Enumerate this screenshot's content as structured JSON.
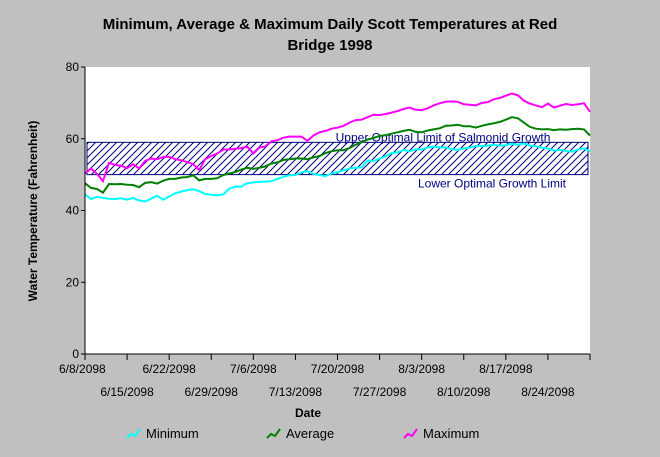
{
  "chart_data": {
    "type": "line",
    "title_lines": [
      "Minimum, Average & Maximum Daily Scott Temperatures at Red",
      "Bridge 1998"
    ],
    "xlabel": "Date",
    "ylabel": "Water Temperature (Fahrenheit)",
    "ylim": [
      0,
      80
    ],
    "yticks": [
      0,
      20,
      40,
      60,
      80
    ],
    "x_start": "6/8/2098",
    "x_end": "8/31/2098",
    "x_ticks_row1": [
      "6/8/2098",
      "6/22/2098",
      "7/6/2098",
      "7/20/2098",
      "8/3/2098",
      "8/17/2098"
    ],
    "x_ticks_row2": [
      "6/15/2098",
      "6/29/2098",
      "7/13/2098",
      "7/27/2098",
      "8/10/2098",
      "8/24/2098"
    ],
    "grid": false,
    "band": {
      "upper": 59,
      "lower": 50,
      "upper_label": "Upper Optimal Limit of Salmonid Growth",
      "lower_label": "Lower Optimal Growth Limit",
      "color": "#000080"
    },
    "legend_position": "bottom",
    "series": [
      {
        "name": "Minimum",
        "color": "#00ffff",
        "values": [
          44.5,
          43.2,
          43.8,
          43.5,
          43.3,
          43.2,
          43.4,
          43.0,
          43.5,
          42.8,
          42.5,
          43.3,
          44.1,
          43.0,
          43.9,
          44.8,
          45.3,
          45.7,
          45.9,
          45.4,
          44.6,
          44.4,
          44.2,
          44.5,
          46.1,
          46.6,
          46.7,
          47.6,
          47.8,
          48.0,
          48.0,
          48.2,
          48.8,
          49.4,
          49.8,
          49.9,
          50.6,
          51.0,
          50.2,
          49.9,
          49.6,
          50.3,
          50.7,
          51.2,
          51.7,
          51.9,
          52.0,
          53.9,
          53.8,
          54.5,
          55.1,
          56.0,
          56.2,
          56.9,
          56.5,
          57.1,
          57.0,
          57.6,
          57.8,
          57.6,
          57.6,
          57.1,
          56.9,
          57.3,
          57.5,
          58.0,
          57.9,
          58.1,
          58.3,
          58.1,
          58.2,
          58.6,
          58.3,
          58.7,
          58.1,
          57.9,
          57.5,
          57.3,
          56.7,
          56.9,
          56.6,
          56.4,
          57.0,
          57.3,
          56.5
        ]
      },
      {
        "name": "Average",
        "color": "#008000",
        "values": [
          47.6,
          46.3,
          46.0,
          45.0,
          47.4,
          47.3,
          47.4,
          47.2,
          47.1,
          46.5,
          47.7,
          47.9,
          47.5,
          48.3,
          48.8,
          48.8,
          49.2,
          49.3,
          49.8,
          48.4,
          48.8,
          48.8,
          49.0,
          49.9,
          50.3,
          50.7,
          51.4,
          51.9,
          51.6,
          51.9,
          52.3,
          53.1,
          53.4,
          54.1,
          54.3,
          54.5,
          54.5,
          54.3,
          54.8,
          55.2,
          56.0,
          56.5,
          56.8,
          56.8,
          57.4,
          58.3,
          59.0,
          59.8,
          60.2,
          60.8,
          61.0,
          61.4,
          61.8,
          62.2,
          62.5,
          61.9,
          61.8,
          62.3,
          62.6,
          62.9,
          63.6,
          63.7,
          63.9,
          63.5,
          63.5,
          63.1,
          63.6,
          64.0,
          64.3,
          64.7,
          65.3,
          66.0,
          65.7,
          64.5,
          63.3,
          62.8,
          62.6,
          62.7,
          62.4,
          62.6,
          62.5,
          62.7,
          62.8,
          62.6,
          60.9
        ]
      },
      {
        "name": "Maximum",
        "color": "#ff00ff",
        "values": [
          50.3,
          51.7,
          50.2,
          48.2,
          53.3,
          52.7,
          52.5,
          51.8,
          52.9,
          51.7,
          53.8,
          54.5,
          54.3,
          54.9,
          55.0,
          54.3,
          54.0,
          53.5,
          52.9,
          51.3,
          54.3,
          55.2,
          55.9,
          57.0,
          57.0,
          57.2,
          57.4,
          57.8,
          55.9,
          57.5,
          57.9,
          59.3,
          59.6,
          60.3,
          60.6,
          60.6,
          60.6,
          59.4,
          60.9,
          61.8,
          62.2,
          62.8,
          63.1,
          63.6,
          64.5,
          65.2,
          65.3,
          66.0,
          66.7,
          66.6,
          66.9,
          67.3,
          67.7,
          68.3,
          68.7,
          68.1,
          68.0,
          68.5,
          69.3,
          69.9,
          70.3,
          70.4,
          70.3,
          69.6,
          69.5,
          69.3,
          70.0,
          70.2,
          71.0,
          71.4,
          72.0,
          72.6,
          72.1,
          70.6,
          69.8,
          69.3,
          68.8,
          69.8,
          68.7,
          69.2,
          69.7,
          69.4,
          69.6,
          69.9,
          67.5
        ]
      }
    ]
  }
}
